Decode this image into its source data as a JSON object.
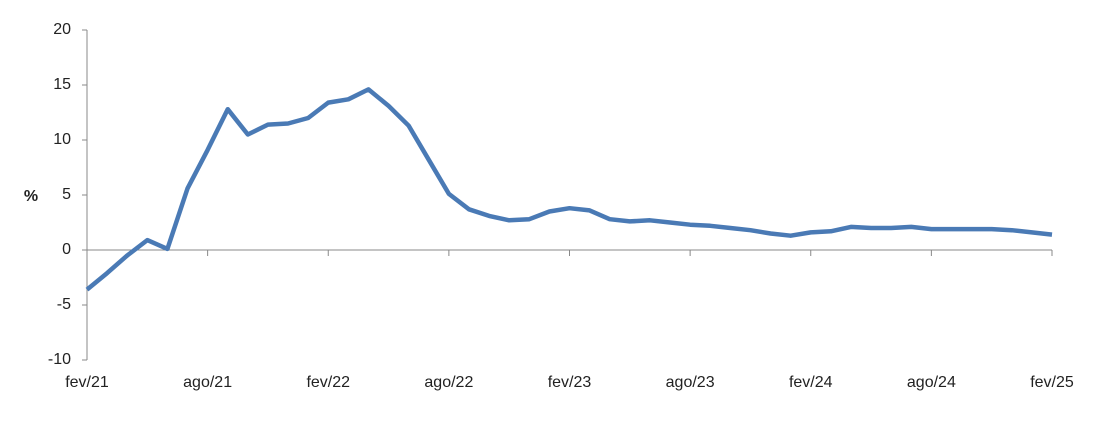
{
  "chart_data": {
    "type": "line",
    "y_label": "%",
    "categories": [
      "fev/21",
      null,
      null,
      null,
      null,
      null,
      "ago/21",
      null,
      null,
      null,
      null,
      null,
      "fev/22",
      null,
      null,
      null,
      null,
      null,
      "ago/22",
      null,
      null,
      null,
      null,
      null,
      "fev/23",
      null,
      null,
      null,
      null,
      null,
      "ago/23",
      null,
      null,
      null,
      null,
      null,
      "fev/24",
      null,
      null,
      null,
      null,
      null,
      "ago/24",
      null,
      null,
      null,
      null,
      null,
      "fev/25"
    ],
    "series": [
      {
        "color": "#4a7ab5",
        "values": [
          -3.6,
          -2.1,
          -0.5,
          0.9,
          0.1,
          5.6,
          9.1,
          12.8,
          10.5,
          11.4,
          11.5,
          12.0,
          13.4,
          13.7,
          14.6,
          13.1,
          11.3,
          8.2,
          5.1,
          3.7,
          3.1,
          2.7,
          2.8,
          3.5,
          3.8,
          3.6,
          2.8,
          2.6,
          2.7,
          2.5,
          2.3,
          2.2,
          2.0,
          1.8,
          1.5,
          1.3,
          1.6,
          1.7,
          2.1,
          2.0,
          2.0,
          2.1,
          1.9,
          1.9,
          1.9,
          1.9,
          1.8,
          1.6,
          1.4
        ]
      }
    ],
    "ylim": [
      -10,
      20
    ],
    "yticks": [
      -10,
      -5,
      0,
      5,
      10,
      15,
      20
    ],
    "grid": false
  }
}
